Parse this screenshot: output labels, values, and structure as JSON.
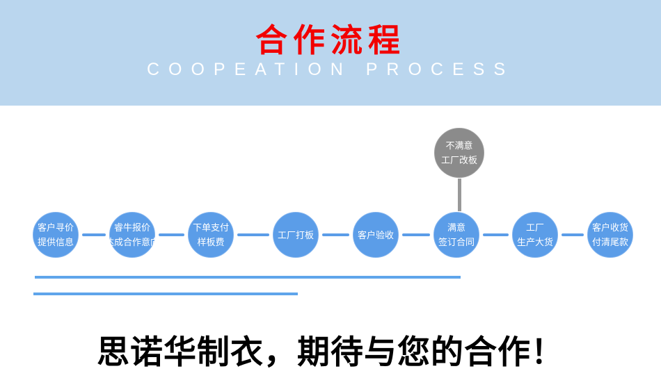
{
  "banner": {
    "title": "合作流程",
    "subtitle": "COOPEATION PROCESS"
  },
  "flow": {
    "steps": [
      {
        "lines": [
          "客户寻价",
          "提供信息"
        ]
      },
      {
        "lines": [
          "睿牛报价",
          "达成合作意向"
        ]
      },
      {
        "lines": [
          "下单支付",
          "样板费"
        ]
      },
      {
        "lines": [
          "工厂打板"
        ]
      },
      {
        "lines": [
          "客户验收"
        ]
      },
      {
        "lines": [
          "满意",
          "签订合同"
        ]
      },
      {
        "lines": [
          "工厂",
          "生产大货"
        ]
      },
      {
        "lines": [
          "客户收货",
          "付清尾款"
        ]
      }
    ],
    "reject_node": {
      "lines": [
        "不满意",
        "工厂改板"
      ]
    }
  },
  "footer": {
    "headline": "思诺华制衣，期待与您的合作！"
  },
  "colors": {
    "banner_bg": "#bad6ee",
    "title_red": "#f20000",
    "subtitle_white": "#ffffff",
    "node_blue": "#5b9de8",
    "reject_gray": "#8b8b8b",
    "connector_gray": "#999999",
    "underline_blue": "#5fa5eb",
    "footer_black": "#000000"
  }
}
